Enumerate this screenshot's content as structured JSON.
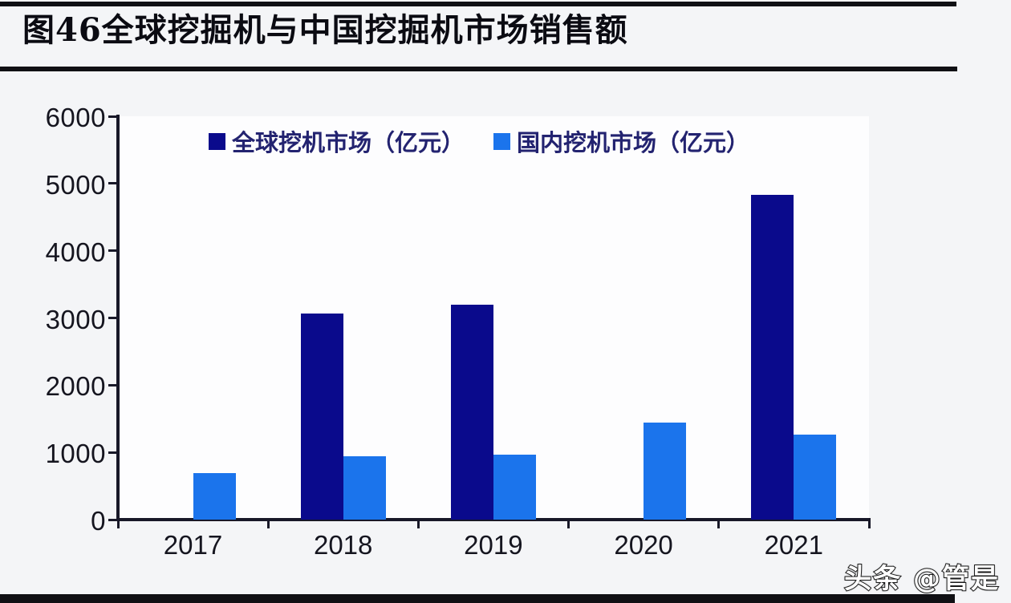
{
  "page": {
    "title": "图46全球挖掘机与中国挖掘机市场销售额",
    "watermark": "头条 @管是"
  },
  "chart_data": {
    "type": "bar",
    "title": "图46全球挖掘机与中国挖掘机市场销售额",
    "categories": [
      "2017",
      "2018",
      "2019",
      "2020",
      "2021"
    ],
    "series": [
      {
        "name": "全球挖机市场（亿元）",
        "color": "#0a0a8c",
        "values": [
          null,
          3070,
          3200,
          null,
          4830
        ]
      },
      {
        "name": "国内挖机市场（亿元）",
        "color": "#1b74ec",
        "values": [
          690,
          940,
          970,
          1440,
          1260
        ]
      }
    ],
    "xlabel": "",
    "ylabel": "",
    "ylim": [
      0,
      6000
    ],
    "yticks": [
      0,
      1000,
      2000,
      3000,
      4000,
      5000,
      6000
    ],
    "grid": false,
    "legend_position": "top-center",
    "axis_color": "#181828",
    "text_color": "#15151f"
  }
}
